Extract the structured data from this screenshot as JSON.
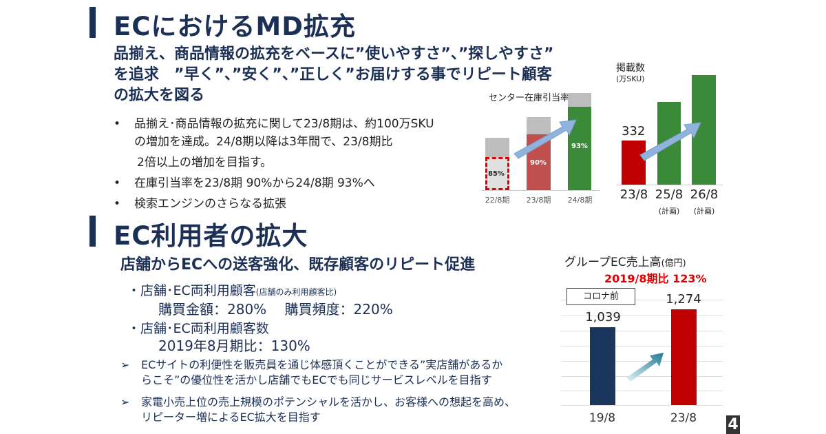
{
  "section1": {
    "title": "ECにおけるMD拡充",
    "lead": [
      "品揃え、商品情報の拡充をベースに”使いやすさ”、”探しやすさ”",
      "を追求　”早く”、”安く”、”正しく”お届けする事でリピート顧客",
      "の拡大を図る"
    ],
    "bullets": [
      {
        "lines": [
          "品揃え･商品情報の拡充に関して23/8期は、約100万SKU",
          "の増加を達成。24/8期以降は3年間で、23/8期比",
          "2倍以上の増加を目指す。"
        ]
      },
      {
        "lines": [
          "在庫引当率を23/8期 90%から24/8期 93%へ"
        ]
      },
      {
        "lines": [
          "検索エンジンのさらなる拡張"
        ]
      }
    ]
  },
  "section2": {
    "title": "EC利用者の拡大",
    "lead": "店舗からECへの送客強化、既存顧客のリピート促進",
    "items": [
      {
        "head": "・店舗･EC両利用顧客",
        "note": "(店舗のみ利用顧客比)",
        "value": "購買金額：280%　 購買頻度：220%"
      },
      {
        "head": "・店舗･EC両利用顧客数",
        "note": "",
        "value": "2019年8月期比：130%"
      }
    ],
    "arrows": [
      {
        "lines": [
          "ECサイトの利便性を販売員を通じ体感頂くことができる”実店舗があるか",
          "らこそ”の優位性を活かし店舗でもECでも同じサービスレベルを目指す"
        ]
      },
      {
        "lines": [
          "家電小売上位の売上規模のポテンシャルを活かし、お客様への想起を高め、",
          "リピーター増によるEC拡大を目指す"
        ]
      }
    ]
  },
  "page_number": "4",
  "chart_data": [
    {
      "type": "bar",
      "title": "センター在庫引当率",
      "categories": [
        "22/8期",
        "23/8期",
        "24/8期"
      ],
      "values": [
        85,
        90,
        93
      ],
      "data_labels": [
        "85%",
        "90%",
        "93%"
      ],
      "colors": [
        "#d9d9d9",
        "#c0504d",
        "#3a8a3a"
      ]
    },
    {
      "type": "bar",
      "title": "掲載数",
      "unit": "(万SKU)",
      "categories": [
        "23/8",
        "25/8",
        "26/8"
      ],
      "sublabels": [
        "",
        "(計画)",
        "(計画)"
      ],
      "values": [
        332,
        null,
        null
      ],
      "data_labels": [
        "332",
        "",
        ""
      ],
      "colors": [
        "#c00000",
        "#3a8a3a",
        "#3a8a3a"
      ]
    },
    {
      "type": "bar",
      "title": "グループEC売上高",
      "unit": "(億円)",
      "subtitle": "2019/8期比 123%",
      "annotation": "コロナ前",
      "categories": [
        "19/8",
        "23/8"
      ],
      "values": [
        1039,
        1274
      ],
      "data_labels": [
        "1,039",
        "1,274"
      ],
      "colors": [
        "#1b365d",
        "#c00000"
      ],
      "grid": true
    }
  ]
}
